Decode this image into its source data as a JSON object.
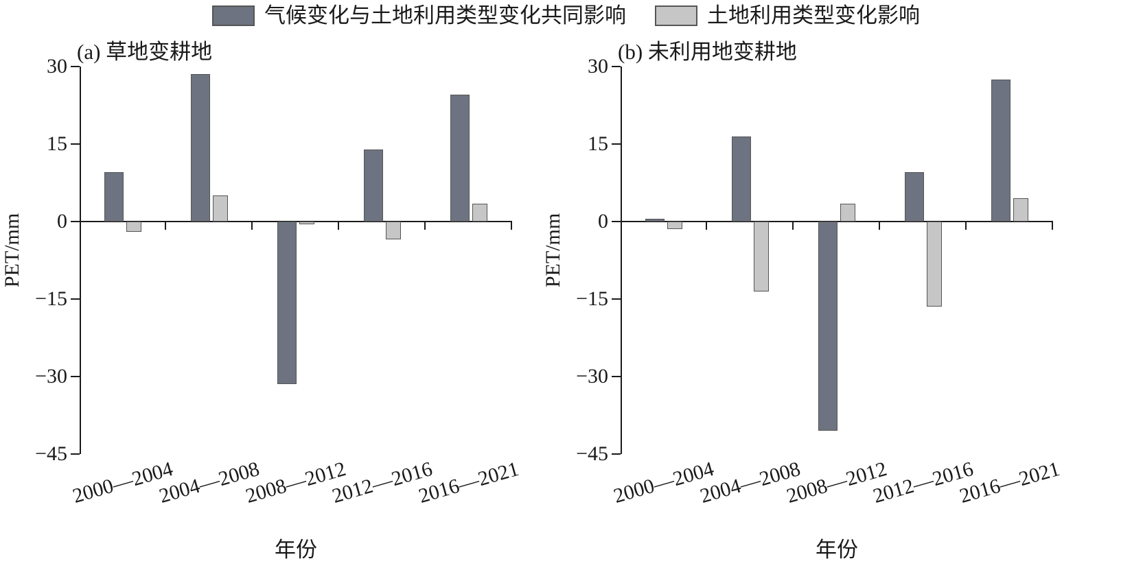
{
  "legend": {
    "items": [
      {
        "label": "气候变化与土地利用类型变化共同影响",
        "color": "#6d7380"
      },
      {
        "label": "土地利用类型变化影响",
        "color": "#c6c6c6"
      }
    ]
  },
  "chart_data": [
    {
      "type": "bar",
      "title": "(a) 草地变耕地",
      "ylabel": "PET/mm",
      "xlabel": "年份",
      "ylim": [
        -45,
        30
      ],
      "yticks": [
        30,
        15,
        0,
        -15,
        -30,
        -45
      ],
      "grid": false,
      "legend_position": "top-center",
      "categories": [
        "2000—2004",
        "2004—2008",
        "2008—2012",
        "2012—2016",
        "2016—2021"
      ],
      "series": [
        {
          "name": "气候变化与土地利用类型变化共同影响",
          "color": "#6d7380",
          "values": [
            9.5,
            28.5,
            -31.5,
            14,
            24.5
          ]
        },
        {
          "name": "土地利用类型变化影响",
          "color": "#c6c6c6",
          "values": [
            -2,
            5,
            -0.5,
            -3.5,
            3.5
          ]
        }
      ]
    },
    {
      "type": "bar",
      "title": "(b) 未利用地变耕地",
      "ylabel": "PET/mm",
      "xlabel": "年份",
      "ylim": [
        -45,
        30
      ],
      "yticks": [
        30,
        15,
        0,
        -15,
        -30,
        -45
      ],
      "grid": false,
      "legend_position": "top-center",
      "categories": [
        "2000—2004",
        "2004—2008",
        "2008—2012",
        "2012—2016",
        "2016—2021"
      ],
      "series": [
        {
          "name": "气候变化与土地利用类型变化共同影响",
          "color": "#6d7380",
          "values": [
            0.5,
            16.5,
            -40.5,
            9.5,
            27.5
          ]
        },
        {
          "name": "土地利用类型变化影响",
          "color": "#c6c6c6",
          "values": [
            -1.5,
            -13.5,
            3.5,
            -16.5,
            4.5
          ]
        }
      ]
    }
  ]
}
